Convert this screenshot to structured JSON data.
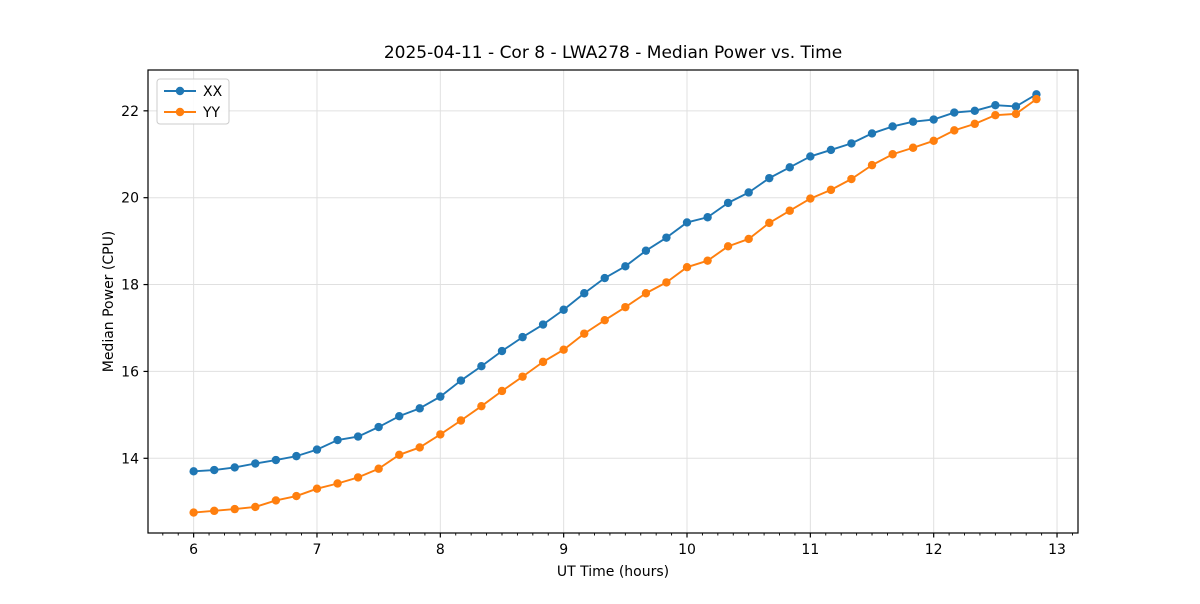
{
  "title": "2025-04-11 - Cor 8 - LWA278 - Median Power vs. Time",
  "xlabel": "UT Time (hours)",
  "ylabel": "Median Power (CPU)",
  "legend": {
    "position": "upper left",
    "items": [
      {
        "label": "XX",
        "color": "#1f77b4"
      },
      {
        "label": "YY",
        "color": "#ff7f0e"
      }
    ]
  },
  "colors": {
    "xx_series": "#1f77b4",
    "yy_series": "#ff7f0e",
    "grid": "#e0e0e0",
    "spine": "#000000",
    "background": "#ffffff"
  },
  "chart_data": {
    "type": "line",
    "title": "2025-04-11 - Cor 8 - LWA278 - Median Power vs. Time",
    "xlabel": "UT Time (hours)",
    "ylabel": "Median Power (CPU)",
    "grid": true,
    "legend_position": "upper left",
    "xlim": [
      5.63,
      13.17
    ],
    "ylim": [
      12.28,
      22.94
    ],
    "x_ticks": [
      6,
      7,
      8,
      9,
      10,
      11,
      12,
      13
    ],
    "x_minor_tick_step": 0.125,
    "y_ticks": [
      14,
      16,
      18,
      20,
      22
    ],
    "x": [
      6.0,
      6.167,
      6.333,
      6.5,
      6.667,
      6.833,
      7.0,
      7.167,
      7.333,
      7.5,
      7.667,
      7.833,
      8.0,
      8.167,
      8.333,
      8.5,
      8.667,
      8.833,
      9.0,
      9.167,
      9.333,
      9.5,
      9.667,
      9.833,
      10.0,
      10.167,
      10.333,
      10.5,
      10.667,
      10.833,
      11.0,
      11.167,
      11.333,
      11.5,
      11.667,
      11.833,
      12.0,
      12.167,
      12.333,
      12.5,
      12.667,
      12.833
    ],
    "series": [
      {
        "name": "XX",
        "color": "#1f77b4",
        "marker": "circle",
        "values": [
          13.7,
          13.73,
          13.79,
          13.88,
          13.96,
          14.05,
          14.2,
          14.42,
          14.5,
          14.72,
          14.97,
          15.15,
          15.42,
          15.79,
          16.12,
          16.47,
          16.79,
          17.08,
          17.42,
          17.8,
          18.15,
          18.42,
          18.78,
          19.08,
          19.43,
          19.55,
          19.88,
          20.12,
          20.45,
          20.7,
          20.95,
          21.1,
          21.25,
          21.48,
          21.64,
          21.75,
          21.8,
          21.96,
          22.0,
          22.13,
          22.1,
          22.38
        ]
      },
      {
        "name": "YY",
        "color": "#ff7f0e",
        "marker": "circle",
        "values": [
          12.75,
          12.79,
          12.83,
          12.88,
          13.03,
          13.13,
          13.3,
          13.42,
          13.56,
          13.76,
          14.08,
          14.25,
          14.55,
          14.87,
          15.2,
          15.55,
          15.88,
          16.22,
          16.5,
          16.87,
          17.18,
          17.48,
          17.8,
          18.05,
          18.4,
          18.55,
          18.88,
          19.05,
          19.42,
          19.7,
          19.98,
          20.18,
          20.43,
          20.75,
          21.0,
          21.15,
          21.31,
          21.55,
          21.7,
          21.9,
          21.93,
          22.27
        ]
      }
    ]
  }
}
